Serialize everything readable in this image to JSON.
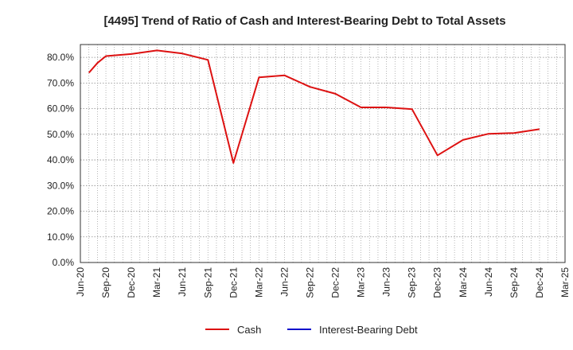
{
  "chart_data": {
    "type": "line",
    "title": "[4495]  Trend of Ratio of Cash and Interest-Bearing Debt to Total Assets",
    "xlabel": "",
    "ylabel": "",
    "x_ticks": [
      "Jun-20",
      "Sep-20",
      "Dec-20",
      "Mar-21",
      "Jun-21",
      "Sep-21",
      "Dec-21",
      "Mar-22",
      "Jun-22",
      "Sep-22",
      "Dec-22",
      "Mar-23",
      "Jun-23",
      "Sep-23",
      "Dec-23",
      "Mar-24",
      "Jun-24",
      "Sep-24",
      "Dec-24",
      "Mar-25"
    ],
    "y_ticks": [
      "0.0%",
      "10.0%",
      "20.0%",
      "30.0%",
      "40.0%",
      "50.0%",
      "60.0%",
      "70.0%",
      "80.0%"
    ],
    "ylim": [
      0,
      85
    ],
    "x_range_months": [
      "2020-06",
      "2025-03"
    ],
    "grid": true,
    "legend_position": "bottom",
    "series": [
      {
        "name": "Cash",
        "color": "#dd1111",
        "points": [
          {
            "x": "2020-07",
            "y": 74.0
          },
          {
            "x": "2020-08",
            "y": 77.8
          },
          {
            "x": "2020-09",
            "y": 80.5
          },
          {
            "x": "2020-12",
            "y": 81.3
          },
          {
            "x": "2021-03",
            "y": 82.7
          },
          {
            "x": "2021-06",
            "y": 81.5
          },
          {
            "x": "2021-09",
            "y": 79.0
          },
          {
            "x": "2021-12",
            "y": 38.8
          },
          {
            "x": "2022-03",
            "y": 72.2
          },
          {
            "x": "2022-06",
            "y": 73.0
          },
          {
            "x": "2022-09",
            "y": 68.5
          },
          {
            "x": "2022-12",
            "y": 65.8
          },
          {
            "x": "2023-03",
            "y": 60.5
          },
          {
            "x": "2023-06",
            "y": 60.5
          },
          {
            "x": "2023-09",
            "y": 59.8
          },
          {
            "x": "2023-12",
            "y": 41.8
          },
          {
            "x": "2024-03",
            "y": 47.8
          },
          {
            "x": "2024-06",
            "y": 50.2
          },
          {
            "x": "2024-09",
            "y": 50.5
          },
          {
            "x": "2024-12",
            "y": 52.0
          }
        ]
      },
      {
        "name": "Interest-Bearing Debt",
        "color": "#1111cc",
        "points": []
      }
    ]
  }
}
